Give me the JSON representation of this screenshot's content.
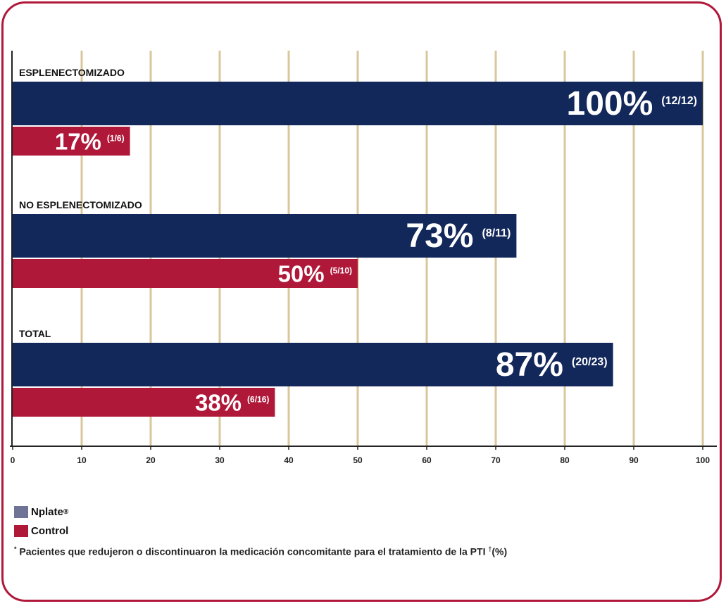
{
  "colors": {
    "nplate": "#12275a",
    "control": "#b0183a",
    "grid": "#d9c79b",
    "frame": "#b0183a",
    "legend_nplate": "#6f7496"
  },
  "chart_data": {
    "type": "bar",
    "orientation": "horizontal",
    "xlim": [
      0,
      100
    ],
    "x_ticks": [
      "0",
      "10",
      "20",
      "30",
      "40",
      "50",
      "60",
      "70",
      "80",
      "90",
      "100"
    ],
    "grid": true,
    "groups": [
      {
        "label": "ESPLENECTOMIZADO",
        "bars": [
          {
            "series": "Nplate",
            "value": 100,
            "pct_label": "100%",
            "count_label": "(12/12)"
          },
          {
            "series": "Control",
            "value": 17,
            "pct_label": "17%",
            "count_label": "(1/6)"
          }
        ]
      },
      {
        "label": "NO ESPLENECTOMIZADO",
        "bars": [
          {
            "series": "Nplate",
            "value": 73,
            "pct_label": "73%",
            "count_label": "(8/11)"
          },
          {
            "series": "Control",
            "value": 50,
            "pct_label": "50%",
            "count_label": "(5/10)"
          }
        ]
      },
      {
        "label": "TOTAL",
        "bars": [
          {
            "series": "Nplate",
            "value": 87,
            "pct_label": "87%",
            "count_label": "(20/23)"
          },
          {
            "series": "Control",
            "value": 38,
            "pct_label": "38%",
            "count_label": "(6/16)"
          }
        ]
      }
    ]
  },
  "legend": {
    "items": [
      {
        "name": "Nplate",
        "sup": "®"
      },
      {
        "name": "Control",
        "sup": ""
      }
    ]
  },
  "footnote": {
    "star": "*",
    "text": "Pacientes que redujeron o discontinuaron la medicación concomitante para el tratamiento de la PTI",
    "dagger": "†",
    "unit": "(%)"
  }
}
